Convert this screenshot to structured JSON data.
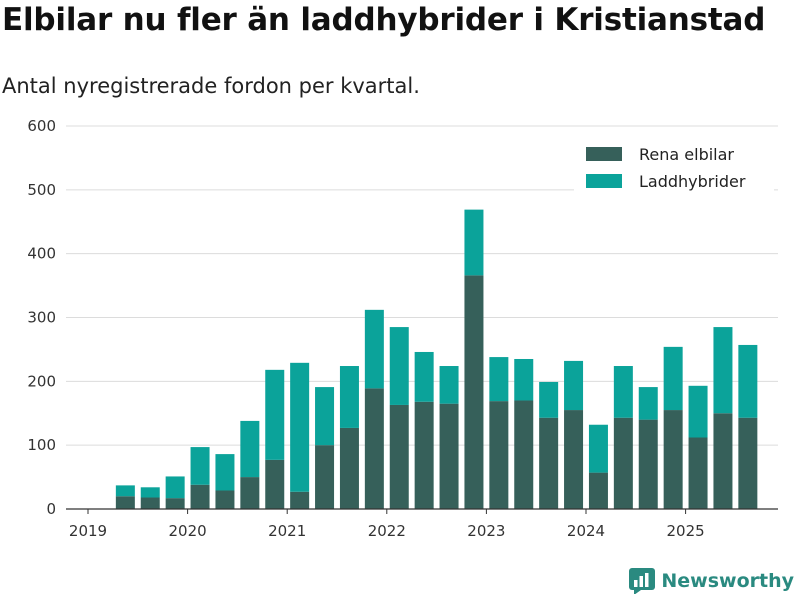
{
  "chart_data": {
    "type": "bar",
    "stacked": true,
    "title": "Elbilar nu fler än laddhybrider i Kristianstad",
    "subtitle": "Antal nyregistrerade fordon per kvartal.",
    "xlabel": "",
    "ylabel": "",
    "ylim": [
      0,
      600
    ],
    "yticks": [
      0,
      100,
      200,
      300,
      400,
      500,
      600
    ],
    "xtick_labels": [
      "2019",
      "2020",
      "2021",
      "2022",
      "2023",
      "2024",
      "2025"
    ],
    "grid": true,
    "legend_position": "top-right",
    "categories": [
      "2019 Q2",
      "2019 Q3",
      "2019 Q4",
      "2020 Q1",
      "2020 Q2",
      "2020 Q3",
      "2020 Q4",
      "2021 Q1",
      "2021 Q2",
      "2021 Q3",
      "2021 Q4",
      "2022 Q1",
      "2022 Q2",
      "2022 Q3",
      "2022 Q4",
      "2023 Q1",
      "2023 Q2",
      "2023 Q3",
      "2023 Q4",
      "2024 Q1",
      "2024 Q2",
      "2024 Q3",
      "2024 Q4",
      "2025 Q1",
      "2025 Q2",
      "2025 Q3"
    ],
    "series": [
      {
        "name": "Rena elbilar",
        "color": "#36605a",
        "values": [
          20,
          18,
          17,
          38,
          29,
          50,
          77,
          27,
          100,
          127,
          189,
          163,
          168,
          165,
          366,
          169,
          170,
          143,
          155,
          57,
          143,
          140,
          155,
          112,
          150,
          143
        ]
      },
      {
        "name": "Laddhybrider",
        "color": "#0ba39a",
        "values": [
          17,
          16,
          34,
          59,
          57,
          88,
          141,
          202,
          91,
          97,
          123,
          122,
          78,
          59,
          103,
          69,
          65,
          56,
          77,
          75,
          81,
          51,
          99,
          81,
          135,
          114
        ]
      }
    ]
  },
  "brand": {
    "name": "Newsworthy",
    "icon": "bar-chart-logo-icon",
    "color": "#2a8a80"
  }
}
